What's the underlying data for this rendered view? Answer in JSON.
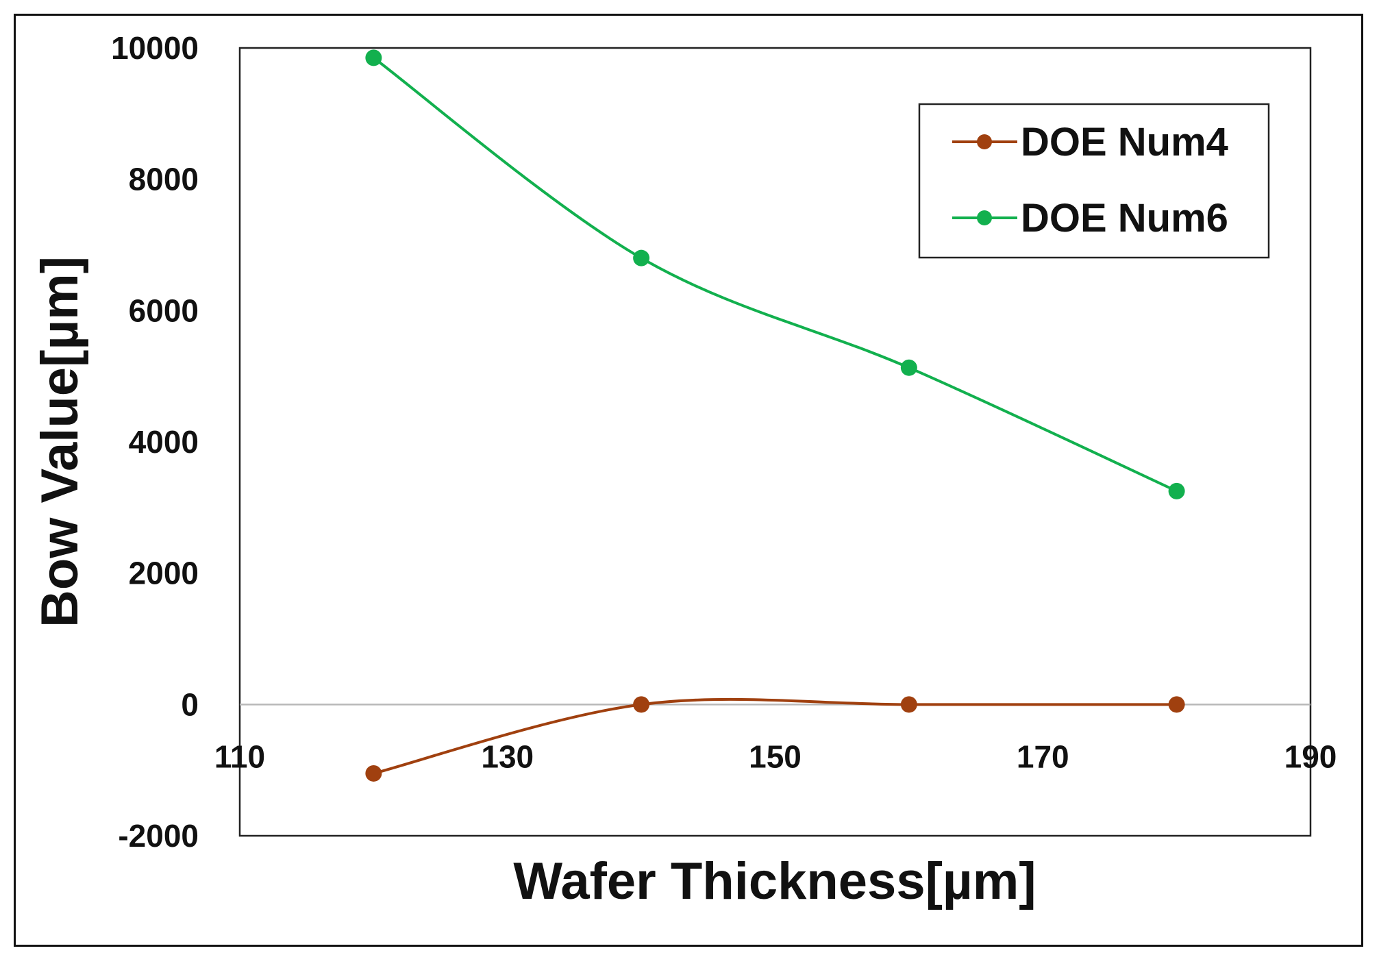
{
  "chart_data": {
    "type": "line",
    "title": "",
    "xlabel": "Wafer Thickness[µm]",
    "ylabel": "Bow Value[µm]",
    "xlim": [
      110,
      190
    ],
    "ylim": [
      -2000,
      10000
    ],
    "xticks": [
      110,
      130,
      150,
      170,
      190
    ],
    "yticks": [
      -2000,
      0,
      2000,
      4000,
      6000,
      8000,
      10000
    ],
    "x": [
      120,
      140,
      160,
      180
    ],
    "series": [
      {
        "name": "DOE Num4",
        "color": "#a0400f",
        "values": [
          -1050,
          0,
          0,
          0
        ]
      },
      {
        "name": "DOE Num6",
        "color": "#12b04e",
        "values": [
          9850,
          6800,
          5130,
          3250
        ]
      }
    ],
    "legend_position": "top-right",
    "grid": false
  }
}
